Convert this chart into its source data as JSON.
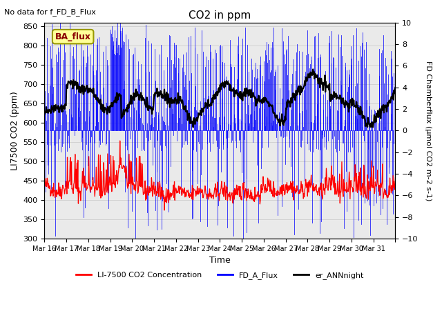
{
  "title": "CO2 in ppm",
  "top_left_note": "No data for f_FD_B_Flux",
  "ba_flux_label": "BA_flux",
  "xlabel": "Time",
  "ylabel_left": "LI7500 CO2 (ppm)",
  "ylabel_right": "FD Chamberflux (μmol CO2 m-2 s-1)",
  "ylim_left": [
    300,
    860
  ],
  "ylim_right": [
    -10,
    10
  ],
  "yticks_left": [
    300,
    350,
    400,
    450,
    500,
    550,
    600,
    650,
    700,
    750,
    800,
    850
  ],
  "yticks_right": [
    -10,
    -8,
    -6,
    -4,
    -2,
    0,
    2,
    4,
    6,
    8,
    10
  ],
  "xtick_positions": [
    0,
    1,
    2,
    3,
    4,
    5,
    6,
    7,
    8,
    9,
    10,
    11,
    12,
    13,
    14,
    15,
    16
  ],
  "xtick_labels": [
    "Mar 16",
    "Mar 17",
    "Mar 18",
    "Mar 19",
    "Mar 20",
    "Mar 21",
    "Mar 22",
    "Mar 23",
    "Mar 24",
    "Mar 25",
    "Mar 26",
    "Mar 27",
    "Mar 28",
    "Mar 29",
    "Mar 30",
    "Mar 31",
    ""
  ],
  "n_days": 16,
  "color_red": "#FF0000",
  "color_blue": "#0000FF",
  "color_black": "#000000",
  "color_bg_band": "#DCDCDC",
  "legend_labels": [
    "LI-7500 CO2 Concentration",
    "FD_A_Flux",
    "er_ANNnight"
  ],
  "ba_flux_facecolor": "#FFFF99",
  "ba_flux_edgecolor": "#999900",
  "ba_flux_textcolor": "#8B0000",
  "grid_color": "#C8C8C8",
  "n_points_per_day": 48,
  "seed": 42
}
